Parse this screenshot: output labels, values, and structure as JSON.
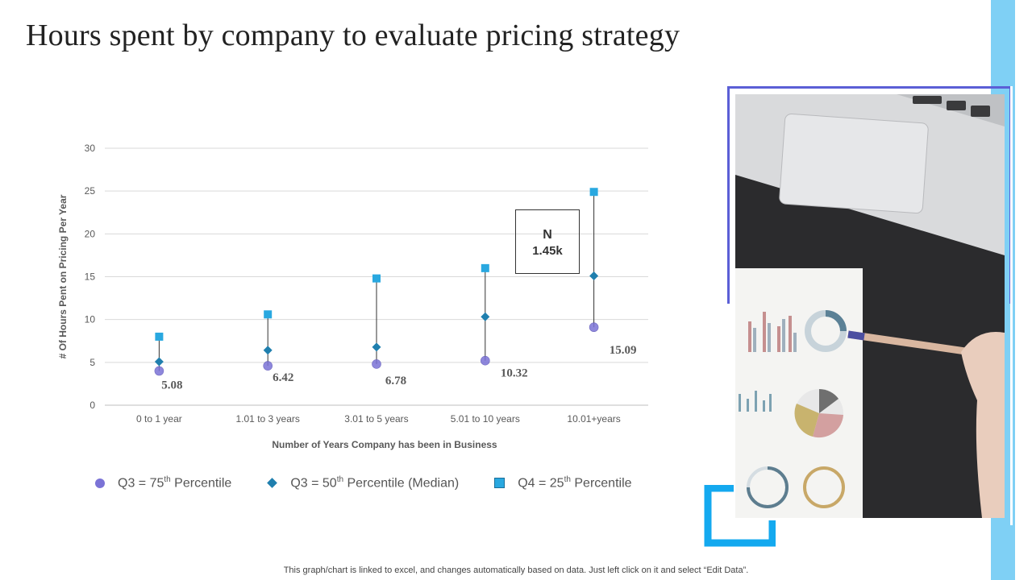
{
  "title": "Hours spent by company to evaluate pricing strategy",
  "footer_note": "This graph/chart is linked to excel,  and changes automatically based on data. Just left click on it and select “Edit Data”.",
  "annotation": {
    "label": "N",
    "value": "1.45k"
  },
  "legend": {
    "q3_75": {
      "prefix": "Q3 = 75",
      "sup": "th",
      "suffix": " Percentile"
    },
    "q3_50": {
      "prefix": "Q3 = 50",
      "sup": "th",
      "suffix": " Percentile (Median)"
    },
    "q4_25": {
      "prefix": "Q4 = 25",
      "sup": "th",
      "suffix": " Percentile"
    }
  },
  "colors": {
    "circle": "#7b73d6",
    "diamond": "#1f7fae",
    "square": "#29a8e0",
    "accent_strip": "#7fd0f5",
    "frame": "#5b5fd6",
    "bracket": "#14a9ef"
  },
  "chart_data": {
    "type": "scatter",
    "title": "",
    "xlabel": "Number of Years Company has been in Business",
    "ylabel": "# Of Hours Pent on Pricing Per Year",
    "ylim": [
      0,
      30
    ],
    "yticks": [
      0,
      5,
      10,
      15,
      20,
      25,
      30
    ],
    "grid": true,
    "categories": [
      "0 to 1 year",
      "1.01 to 3 years",
      "3.01 to 5 years",
      "5.01 to 10 years",
      "10.01+years"
    ],
    "series": [
      {
        "name": "Q3 = 75th Percentile",
        "marker": "circle",
        "values": [
          4.0,
          4.6,
          4.8,
          5.2,
          9.1
        ]
      },
      {
        "name": "Q3 = 50th Percentile (Median)",
        "marker": "diamond",
        "values": [
          5.08,
          6.42,
          6.78,
          10.32,
          15.09
        ]
      },
      {
        "name": "Q4 = 25th Percentile",
        "marker": "square",
        "values": [
          8.0,
          10.6,
          14.8,
          16.0,
          24.9
        ]
      }
    ],
    "data_labels": [
      "5.08",
      "6.42",
      "6.78",
      "10.32",
      "15.09"
    ]
  }
}
